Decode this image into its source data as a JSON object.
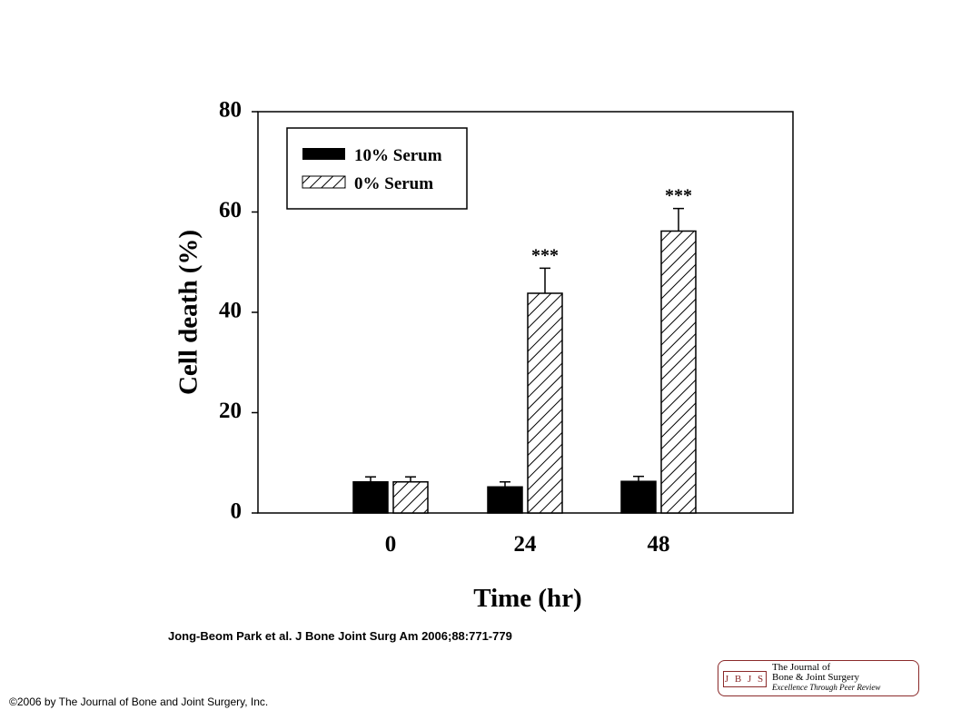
{
  "chart_data": {
    "type": "bar",
    "categories": [
      "0",
      "24",
      "48"
    ],
    "series": [
      {
        "name": "10% Serum",
        "values": [
          6.2,
          5.2,
          6.3
        ],
        "errors": [
          1.0,
          1.0,
          1.0
        ],
        "fill": "solid"
      },
      {
        "name": "0% Serum",
        "values": [
          6.2,
          43.8,
          56.2
        ],
        "errors": [
          1.0,
          5.0,
          4.5
        ],
        "fill": "hatched"
      }
    ],
    "annotations": [
      {
        "category": "24",
        "series": "0% Serum",
        "text": "***"
      },
      {
        "category": "48",
        "series": "0% Serum",
        "text": "***"
      }
    ],
    "xlabel": "Time (hr)",
    "ylabel": "Cell death (%)",
    "ylim": [
      0,
      80
    ],
    "yticks": [
      "0",
      "20",
      "40",
      "60",
      "80"
    ],
    "grid": false,
    "legend_position": "top-left"
  },
  "citation": "Jong-Beom Park et al. J Bone Joint Surg Am 2006;88:771-779",
  "copyright": "©2006 by The Journal of Bone and Joint Surgery, Inc.",
  "logo": {
    "abbr": "J B J S",
    "line1": "The Journal of",
    "line2": "Bone & Joint Surgery",
    "line3": "Excellence Through Peer Review",
    "color": "#8b2a2a"
  }
}
